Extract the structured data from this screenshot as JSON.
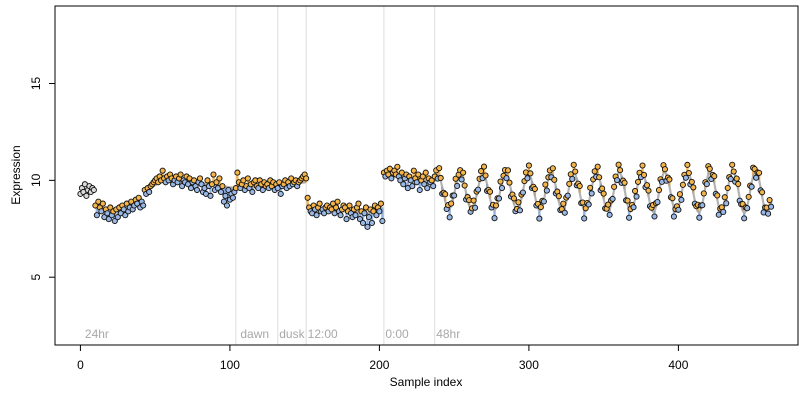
{
  "chart_data": {
    "type": "scatter",
    "title": "",
    "xlabel": "Sample index",
    "ylabel": "Expression",
    "xlim": [
      -17,
      480
    ],
    "ylim": [
      1.5,
      19
    ],
    "xticks": [
      0,
      100,
      200,
      300,
      400
    ],
    "yticks": [
      5,
      10,
      15
    ],
    "grid": false,
    "legend": "none",
    "colors": {
      "point_fill_orange": "#f5b54a",
      "point_fill_blue": "#9ab8e6",
      "point_fill_default": "#d9d9d9",
      "point_stroke": "#111111",
      "fit_line": "#a0a0a0",
      "band_orange": "#f0a830",
      "band_blue": "#7fa6dc",
      "vline": "#dddddd",
      "annotation": "#a8a8a8"
    },
    "phase_boundaries": [
      104,
      132,
      151,
      203,
      237
    ],
    "annotations": [
      {
        "x": 3,
        "label": "24hr"
      },
      {
        "x": 107,
        "label": "dawn"
      },
      {
        "x": 133,
        "label": "dusk"
      },
      {
        "x": 152,
        "label": "12:00"
      },
      {
        "x": 204,
        "label": "0:00"
      },
      {
        "x": 238,
        "label": "48hr"
      }
    ],
    "segments": [
      {
        "start": 0,
        "end": 9,
        "points": [
          9.3,
          9.6,
          9.4,
          9.8,
          9.2,
          9.5,
          9.7,
          9.4,
          9.6,
          9.5
        ]
      },
      {
        "start": 10,
        "end": 42,
        "trend": [
          [
            10,
            8.6
          ],
          [
            20,
            8.3
          ],
          [
            30,
            8.6
          ],
          [
            42,
            9.0
          ]
        ],
        "points": [
          8.7,
          8.2,
          8.9,
          8.6,
          8.4,
          8.8,
          8.1,
          8.5,
          8.3,
          8.0,
          8.6,
          8.2,
          8.4,
          7.9,
          8.5,
          8.1,
          8.6,
          8.3,
          8.7,
          8.5,
          8.2,
          8.8,
          8.4,
          8.6,
          8.9,
          8.5,
          8.7,
          9.0,
          8.8,
          9.1,
          8.6,
          8.9,
          8.7
        ]
      },
      {
        "start": 43,
        "end": 104,
        "trend": [
          [
            43,
            9.4
          ],
          [
            55,
            10.0
          ],
          [
            70,
            10.1
          ],
          [
            85,
            9.8
          ],
          [
            104,
            9.6
          ]
        ],
        "points": [
          9.5,
          9.3,
          9.6,
          9.4,
          9.7,
          9.8,
          9.9,
          10.0,
          10.1,
          9.9,
          10.2,
          10.0,
          10.5,
          10.1,
          9.9,
          10.2,
          10.0,
          10.3,
          10.1,
          9.8,
          10.0,
          10.2,
          9.9,
          10.1,
          10.3,
          9.7,
          10.0,
          9.9,
          10.2,
          9.8,
          10.1,
          9.6,
          9.9,
          10.0,
          9.7,
          9.5,
          9.9,
          10.1,
          9.8,
          9.4,
          9.6,
          9.3,
          10.0,
          9.7,
          9.2,
          9.8,
          10.3,
          9.5,
          9.9,
          9.6,
          10.1,
          9.4,
          9.7,
          8.9,
          9.2,
          8.7,
          9.5,
          9.0,
          9.3,
          9.1,
          9.4,
          9.6
        ]
      },
      {
        "start": 105,
        "end": 151,
        "trend": [
          [
            105,
            9.6
          ],
          [
            130,
            9.7
          ],
          [
            151,
            9.9
          ]
        ],
        "points": [
          10.4,
          9.9,
          9.6,
          9.8,
          10.0,
          9.5,
          9.7,
          10.1,
          9.6,
          9.8,
          9.4,
          9.9,
          10.0,
          9.7,
          9.6,
          10.0,
          9.8,
          9.5,
          9.9,
          9.7,
          9.8,
          9.6,
          10.0,
          9.7,
          9.9,
          9.5,
          9.8,
          9.6,
          9.9,
          9.3,
          9.7,
          9.8,
          10.0,
          9.6,
          9.9,
          9.7,
          10.1,
          9.8,
          9.9,
          10.0,
          9.7,
          9.9,
          10.0,
          10.1,
          10.2,
          10.3,
          10.1
        ]
      },
      {
        "start": 152,
        "end": 202,
        "trend": [
          [
            152,
            8.6
          ],
          [
            175,
            8.4
          ],
          [
            195,
            8.3
          ],
          [
            202,
            8.6
          ]
        ],
        "points": [
          9.1,
          8.6,
          8.4,
          8.3,
          8.7,
          8.5,
          8.2,
          8.6,
          8.8,
          8.4,
          8.5,
          8.3,
          8.6,
          8.7,
          8.4,
          8.6,
          8.5,
          8.8,
          8.3,
          8.6,
          8.9,
          8.4,
          8.2,
          8.5,
          8.7,
          8.6,
          8.0,
          8.4,
          8.7,
          8.3,
          8.1,
          8.5,
          8.2,
          8.6,
          8.8,
          8.0,
          8.4,
          7.8,
          8.3,
          8.6,
          7.6,
          8.1,
          8.5,
          7.8,
          8.4,
          8.7,
          8.2,
          8.6,
          8.4,
          8.8,
          7.9
        ]
      },
      {
        "start": 203,
        "end": 237,
        "trend": [
          [
            203,
            10.3
          ],
          [
            215,
            10.2
          ],
          [
            228,
            10.0
          ],
          [
            237,
            9.9
          ]
        ],
        "points": [
          10.4,
          10.2,
          10.5,
          10.3,
          10.6,
          10.1,
          10.4,
          10.5,
          10.3,
          10.7,
          10.2,
          10.0,
          10.4,
          9.8,
          10.1,
          10.3,
          9.6,
          10.2,
          10.0,
          9.7,
          10.5,
          10.1,
          9.9,
          10.3,
          9.5,
          10.0,
          10.2,
          9.8,
          10.4,
          9.6,
          10.1,
          9.9,
          10.0,
          9.7,
          10.2
        ]
      }
    ],
    "oscillation": {
      "start": 238,
      "end": 462,
      "mean": 9.4,
      "amplitude": 0.9,
      "period": 15.2,
      "phase": 1.2,
      "end_amplitude": 1.1,
      "residuals": [
        0.4,
        -0.3,
        0.6,
        0.2,
        -0.5,
        0.1,
        0.5,
        -0.2,
        0.3,
        -0.6,
        0.2,
        0.4,
        -0.1,
        0.6,
        -0.4,
        0.1,
        0.3,
        -0.3,
        0.5,
        0.0,
        -0.5,
        0.2,
        0.4,
        -0.2,
        0.1,
        0.5,
        -0.4,
        0.3,
        -0.1,
        0.2
      ]
    }
  }
}
